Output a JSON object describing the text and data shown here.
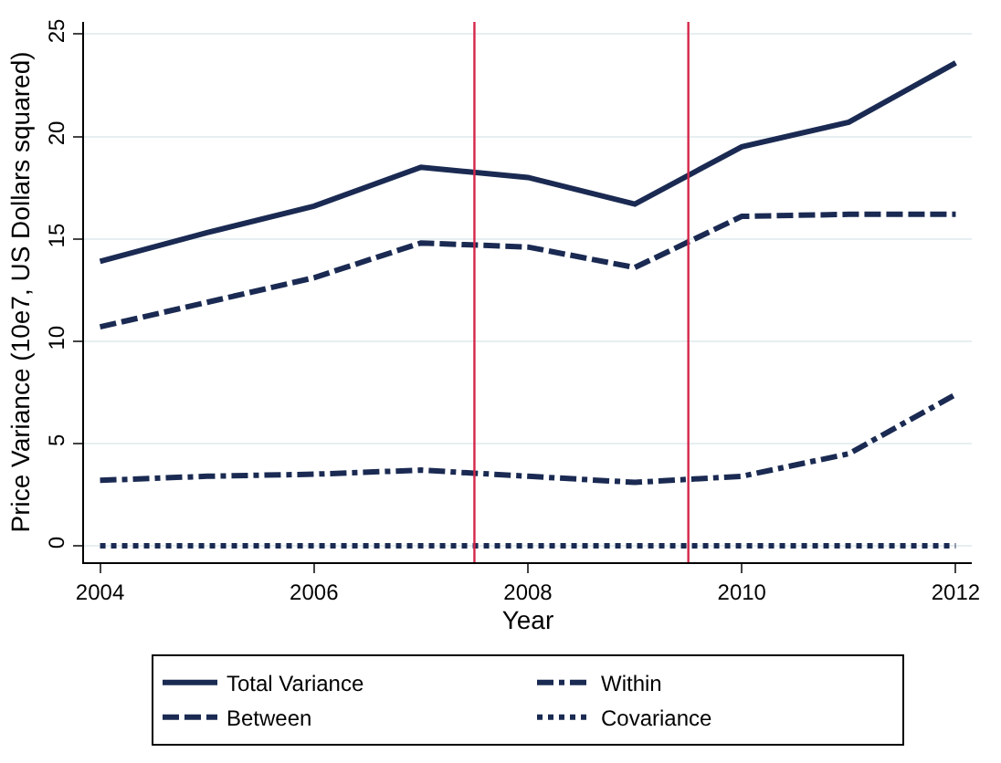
{
  "chart_data": {
    "type": "line",
    "xlabel": "Year",
    "ylabel": "Price Variance (10e7, US Dollars squared)",
    "x": [
      2004,
      2005,
      2006,
      2007,
      2008,
      2009,
      2010,
      2011,
      2012
    ],
    "series": [
      {
        "name": "Total Variance",
        "color": "#1a2a52",
        "line_style": "solid",
        "values": [
          13.9,
          15.3,
          16.6,
          18.5,
          18.0,
          16.7,
          19.5,
          20.7,
          23.6
        ]
      },
      {
        "name": "Between",
        "color": "#1a2a52",
        "line_style": "dashed",
        "values": [
          10.7,
          11.9,
          13.1,
          14.8,
          14.6,
          13.6,
          16.1,
          16.2,
          16.2
        ]
      },
      {
        "name": "Within",
        "color": "#1a2a52",
        "line_style": "dashdot",
        "values": [
          3.2,
          3.4,
          3.5,
          3.7,
          3.4,
          3.1,
          3.4,
          4.5,
          7.4
        ]
      },
      {
        "name": "Covariance",
        "color": "#1a2a52",
        "line_style": "dotted",
        "values": [
          0,
          0,
          0,
          0,
          0,
          0,
          0,
          0,
          0
        ]
      }
    ],
    "xlim": [
      2003.85,
      2012.15
    ],
    "xticks": [
      2004,
      2006,
      2008,
      2010,
      2012
    ],
    "ylim": [
      -0.8,
      25.6
    ],
    "yticks": [
      0,
      5,
      10,
      15,
      20,
      25
    ],
    "ref_lines": [
      {
        "axis": "x",
        "value": 2007.5,
        "color": "#d6264a"
      },
      {
        "axis": "x",
        "value": 2009.5,
        "color": "#d6264a"
      }
    ],
    "grid": "y",
    "legend": "bottom",
    "marker": "none"
  }
}
